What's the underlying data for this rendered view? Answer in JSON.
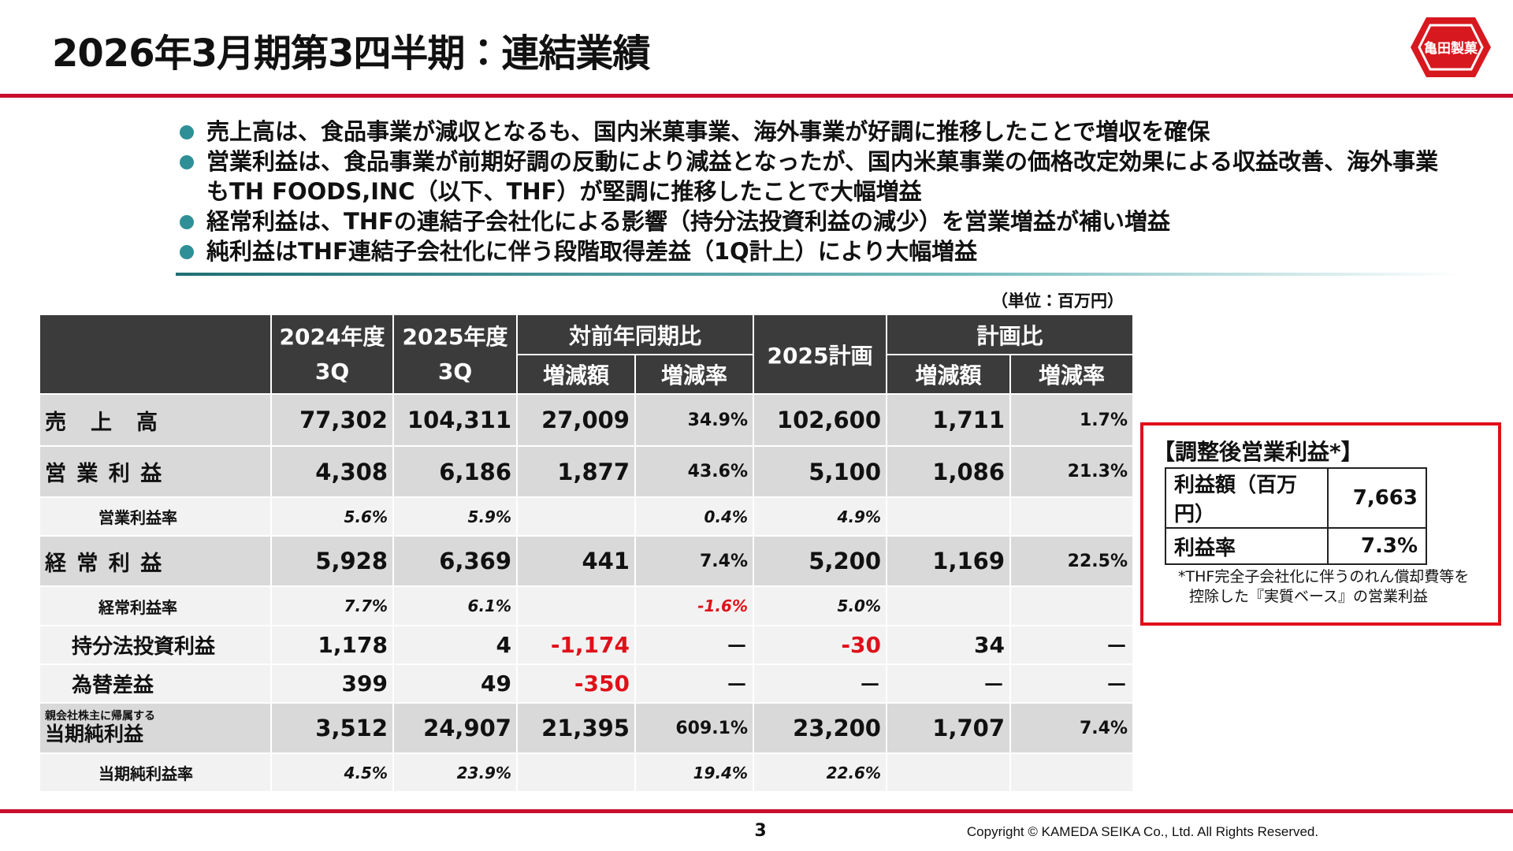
{
  "header": {
    "title": "2026年3月期第3四半期：連結業績",
    "logo": "亀田製菓"
  },
  "bullets": [
    "売上高は、食品事業が減収となるも、国内米菓事業、海外事業が好調に推移したことで増収を確保",
    "営業利益は、食品事業が前期好調の反動により減益となったが、国内米菓事業の価格改定効果による収益改善、海外事業もTH FOODS,INC（以下、THF）が堅調に推移したことで大幅増益",
    "経常利益は、THFの連結子会社化による影響（持分法投資利益の減少）を営業増益が補い増益",
    "純利益はTHF連結子会社化に伴う段階取得差益（1Q計上）により大幅増益"
  ],
  "unit": "（単位：百万円）",
  "table": {
    "columns": {
      "prior": [
        "2024年度",
        "3Q"
      ],
      "current": [
        "2025年度",
        "3Q"
      ],
      "yoy": "対前年同期比",
      "plan": "2025計画",
      "vs_plan": "計画比",
      "sub": [
        "増減額",
        "増減率",
        "増減額",
        "増減率"
      ]
    },
    "rows": [
      {
        "label": [
          "売　上　高"
        ],
        "cells": [
          "77,302",
          "104,311",
          "27,009",
          "34.9%",
          "102,600",
          "1,711",
          "1.7%"
        ]
      },
      {
        "label": [
          "営 業 利 益"
        ],
        "cells": [
          "4,308",
          "6,186",
          "1,877",
          "43.6%",
          "5,100",
          "1,086",
          "21.3%"
        ]
      },
      {
        "label": [
          "営業利益率"
        ],
        "cells": [
          "5.6%",
          "5.9%",
          null,
          "0.4%",
          "4.9%",
          null,
          null
        ]
      },
      {
        "label": [
          "経 常 利 益"
        ],
        "cells": [
          "5,928",
          "6,369",
          "441",
          "7.4%",
          "5,200",
          "1,169",
          "22.5%"
        ]
      },
      {
        "label": [
          "経常利益率"
        ],
        "cells": [
          "7.7%",
          "6.1%",
          null,
          "-1.6%",
          "5.0%",
          null,
          null
        ]
      },
      {
        "label": [
          "持分法投資利益"
        ],
        "cells": [
          "1,178",
          "4",
          "-1,174",
          "－",
          "-30",
          "34",
          "－"
        ]
      },
      {
        "label": [
          "為替差益"
        ],
        "cells": [
          "399",
          "49",
          "-350",
          "－",
          "－",
          "－",
          "－"
        ]
      },
      {
        "label": [
          "親会社株主に帰属する",
          "当期純利益"
        ],
        "cells": [
          "3,512",
          "24,907",
          "21,395",
          "609.1%",
          "23,200",
          "1,707",
          "7.4%"
        ]
      },
      {
        "label": [
          "当期純利益率"
        ],
        "cells": [
          "4.5%",
          "23.9%",
          null,
          "19.4%",
          "22.6%",
          null,
          null
        ]
      }
    ]
  },
  "side": {
    "title": "【調整後営業利益*】",
    "rows": [
      [
        "利益額（百万円）",
        "7,663"
      ],
      [
        "利益率",
        "7.3%"
      ]
    ],
    "note": [
      "*THF完全子会社化に伴うのれん償却費等を",
      "控除した『実質ベース』の営業利益"
    ]
  },
  "footer": {
    "page": "3",
    "copyright": "Copyright ©  KAMEDA SEIKA Co., Ltd. All Rights Reserved."
  }
}
